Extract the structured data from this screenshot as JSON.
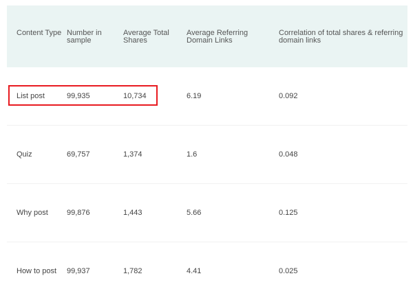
{
  "table": {
    "headers": [
      "Content Type",
      "Number in sample",
      "Average Total Shares",
      "Average Referring Domain Links",
      "Correlation of total shares & referring domain links"
    ],
    "rows": [
      [
        "List post",
        "99,935",
        "10,734",
        "6.19",
        "0.092"
      ],
      [
        "Quiz",
        "69,757",
        "1,374",
        "1.6",
        "0.048"
      ],
      [
        "Why post",
        "99,876",
        "1,443",
        "5.66",
        "0.125"
      ],
      [
        "How to post",
        "99,937",
        "1,782",
        "4.41",
        "0.025"
      ]
    ]
  },
  "highlight": {
    "color": "#e8191f"
  }
}
